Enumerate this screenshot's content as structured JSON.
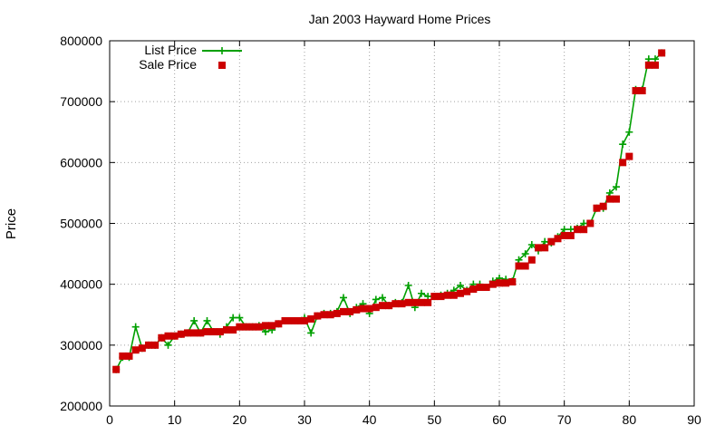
{
  "chart_data": {
    "type": "line",
    "title": "Jan 2003 Hayward Home Prices",
    "xlabel": "",
    "ylabel": "Price",
    "xlim": [
      0,
      90
    ],
    "ylim": [
      200000,
      800000
    ],
    "xticks": [
      0,
      10,
      20,
      30,
      40,
      50,
      60,
      70,
      80,
      90
    ],
    "yticks": [
      200000,
      300000,
      400000,
      500000,
      600000,
      700000,
      800000
    ],
    "xtick_labels": [
      "0",
      "10",
      "20",
      "30",
      "40",
      "50",
      "60",
      "70",
      "80",
      "90"
    ],
    "ytick_labels": [
      "200000",
      "300000",
      "400000",
      "500000",
      "600000",
      "700000",
      "800000"
    ],
    "grid": true,
    "legend_position": "top-left",
    "x": [
      1,
      2,
      3,
      4,
      5,
      6,
      7,
      8,
      9,
      10,
      11,
      12,
      13,
      14,
      15,
      16,
      17,
      18,
      19,
      20,
      21,
      22,
      23,
      24,
      25,
      26,
      27,
      28,
      29,
      30,
      31,
      32,
      33,
      34,
      35,
      36,
      37,
      38,
      39,
      40,
      41,
      42,
      43,
      44,
      45,
      46,
      47,
      48,
      49,
      50,
      51,
      52,
      53,
      54,
      55,
      56,
      57,
      58,
      59,
      60,
      61,
      62,
      63,
      64,
      65,
      66,
      67,
      68,
      69,
      70,
      71,
      72,
      73,
      74,
      75,
      76,
      77,
      78,
      79,
      80,
      81,
      82,
      83,
      84,
      85
    ],
    "series": [
      {
        "name": "List Price",
        "style": "line-plus",
        "color": "#00a000",
        "values": [
          260000,
          280000,
          280000,
          330000,
          295000,
          300000,
          300000,
          312000,
          300000,
          315000,
          318000,
          320000,
          340000,
          320000,
          340000,
          322000,
          318000,
          330000,
          345000,
          345000,
          330000,
          330000,
          332000,
          322000,
          325000,
          335000,
          340000,
          340000,
          340000,
          345000,
          320000,
          348000,
          352000,
          352000,
          355000,
          378000,
          352000,
          362000,
          368000,
          352000,
          375000,
          378000,
          365000,
          370000,
          370000,
          398000,
          362000,
          385000,
          380000,
          380000,
          382000,
          385000,
          390000,
          398000,
          390000,
          400000,
          400000,
          395000,
          405000,
          410000,
          408000,
          405000,
          440000,
          450000,
          465000,
          455000,
          470000,
          468000,
          478000,
          490000,
          490000,
          492000,
          500000,
          500000,
          525000,
          525000,
          550000,
          560000,
          630000,
          650000,
          720000,
          720000,
          770000,
          770000,
          780000
        ]
      },
      {
        "name": "Sale Price",
        "style": "squares",
        "color": "#cc0000",
        "values": [
          260000,
          282000,
          282000,
          292000,
          295000,
          300000,
          300000,
          312000,
          315000,
          315000,
          318000,
          320000,
          320000,
          320000,
          322000,
          322000,
          322000,
          325000,
          325000,
          330000,
          330000,
          330000,
          330000,
          332000,
          332000,
          335000,
          340000,
          340000,
          340000,
          340000,
          343000,
          348000,
          350000,
          350000,
          352000,
          355000,
          355000,
          358000,
          360000,
          360000,
          362000,
          365000,
          365000,
          368000,
          368000,
          370000,
          370000,
          370000,
          370000,
          380000,
          380000,
          382000,
          382000,
          385000,
          388000,
          392000,
          395000,
          395000,
          400000,
          402000,
          402000,
          404000,
          430000,
          430000,
          440000,
          460000,
          460000,
          470000,
          475000,
          480000,
          480000,
          490000,
          490000,
          500000,
          525000,
          528000,
          540000,
          540000,
          600000,
          610000,
          718000,
          718000,
          760000,
          760000,
          780000
        ]
      }
    ]
  }
}
